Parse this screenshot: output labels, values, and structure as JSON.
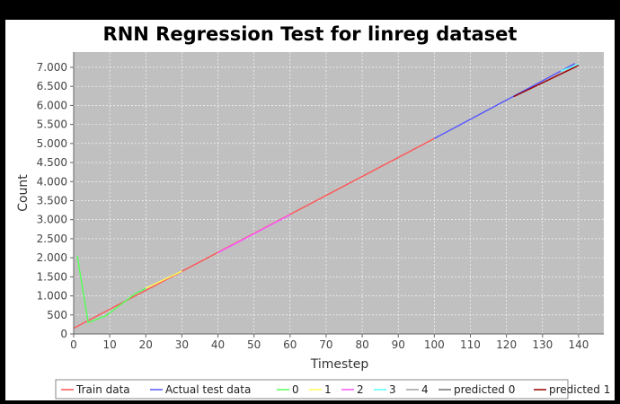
{
  "chart_data": {
    "type": "line",
    "title": "RNN Regression Test for linreg dataset",
    "xlabel": "Timestep",
    "ylabel": "Count",
    "xlim": [
      0,
      147
    ],
    "ylim": [
      0,
      7400
    ],
    "x_ticks": [
      0,
      10,
      20,
      30,
      40,
      50,
      60,
      70,
      80,
      90,
      100,
      110,
      120,
      130,
      140
    ],
    "y_ticks": [
      0,
      500,
      1000,
      1500,
      2000,
      2500,
      3000,
      3500,
      4000,
      4500,
      5000,
      5500,
      6000,
      6500,
      7000
    ],
    "y_tick_labels": [
      "0",
      "500",
      "1.000",
      "1.500",
      "2.000",
      "2.500",
      "3.000",
      "3.500",
      "4.000",
      "4.500",
      "5.000",
      "5.500",
      "6.000",
      "6.500",
      "7.000"
    ],
    "grid": true,
    "legend_position": "bottom",
    "background": "#c0c0c0",
    "series": [
      {
        "name": "Train data",
        "color": "#ff5555",
        "x": [
          0,
          100
        ],
        "y": [
          150,
          5130
        ]
      },
      {
        "name": "Actual test data",
        "color": "#5555ff",
        "x": [
          100,
          139
        ],
        "y": [
          5130,
          7100
        ]
      },
      {
        "name": "0",
        "color": "#55ff55",
        "x": [
          1,
          4,
          9,
          17,
          20
        ],
        "y": [
          2050,
          300,
          480,
          1050,
          1200
        ]
      },
      {
        "name": "1",
        "color": "#ffff55",
        "x": [
          20,
          30
        ],
        "y": [
          1200,
          1650
        ]
      },
      {
        "name": "2",
        "color": "#ff55ff",
        "x": [
          40,
          60
        ],
        "y": [
          2130,
          3130
        ]
      },
      {
        "name": "3",
        "color": "#55ffff",
        "x": [
          135,
          140
        ],
        "y": [
          6900,
          7080
        ]
      },
      {
        "name": "4",
        "color": "#a0a0a0",
        "x": [],
        "y": []
      },
      {
        "name": "predicted 0",
        "color": "#707070",
        "x": [],
        "y": []
      },
      {
        "name": "predicted 1",
        "color": "#990000",
        "x": [
          122,
          140
        ],
        "y": [
          6230,
          7050
        ]
      }
    ]
  }
}
